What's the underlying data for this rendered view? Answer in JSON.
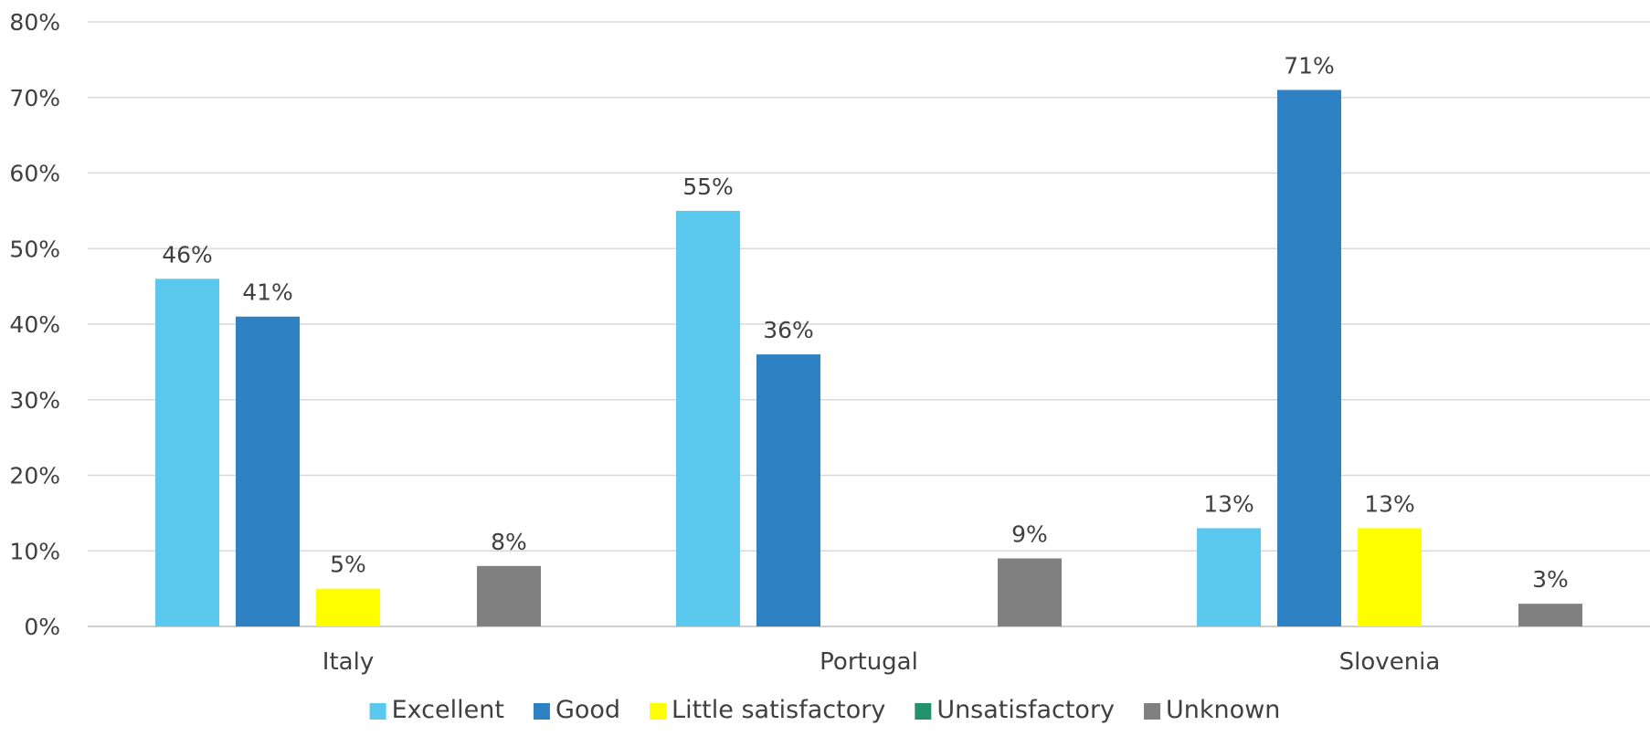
{
  "chart_data": {
    "type": "bar",
    "categories": [
      "Italy",
      "Portugal",
      "Slovenia"
    ],
    "series": [
      {
        "name": "Excellent",
        "color": "#5BC8EE",
        "values": [
          46,
          55,
          13
        ],
        "labels": [
          "46%",
          "55%",
          "13%"
        ]
      },
      {
        "name": "Good",
        "color": "#2E82C4",
        "values": [
          41,
          36,
          71
        ],
        "labels": [
          "41%",
          "36%",
          "71%"
        ]
      },
      {
        "name": "Little satisfactory",
        "color": "#FFFF00",
        "values": [
          5,
          0,
          13
        ],
        "labels": [
          "5%",
          "",
          "13%"
        ]
      },
      {
        "name": "Unsatisfactory",
        "color": "#23916B",
        "values": [
          0,
          0,
          0
        ],
        "labels": [
          "",
          "",
          ""
        ]
      },
      {
        "name": "Unknown",
        "color": "#808080",
        "values": [
          8,
          9,
          3
        ],
        "labels": [
          "8%",
          "9%",
          "3%"
        ]
      }
    ],
    "ylim": [
      0,
      80
    ],
    "yticks": [
      "0%",
      "10%",
      "20%",
      "30%",
      "40%",
      "50%",
      "60%",
      "70%",
      "80%"
    ],
    "grid": true,
    "legend": "bottom"
  }
}
